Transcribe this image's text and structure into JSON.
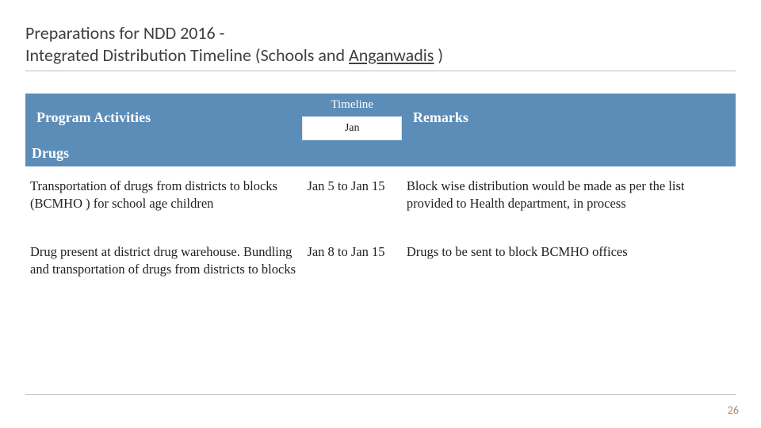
{
  "title_line1": "Preparations for NDD 2016 -",
  "title_line2_a": "Integrated Distribution Timeline (Schools and ",
  "title_line2_b": "Anganwadis",
  "title_line2_c": " )",
  "header": {
    "activities": "Program Activities",
    "timeline": "Timeline",
    "jan": "Jan",
    "remarks": "Remarks"
  },
  "section_drugs": "Drugs",
  "rows": [
    {
      "activity": "Transportation of drugs from districts to blocks (BCMHO ) for school age children",
      "timeline": "Jan 5 to Jan 15",
      "remarks": "Block wise distribution would be made as per the list provided to Health department, in process"
    },
    {
      "activity": "Drug present at district drug warehouse. Bundling and transportation of drugs from districts to blocks",
      "timeline": "Jan 8 to Jan 15",
      "remarks": "Drugs to be sent to block BCMHO offices"
    }
  ],
  "page_number": "26",
  "colors": {
    "header_bg": "#5b8db8",
    "header_fg": "#ffffff",
    "rule": "#bfbfbf",
    "pagenum": "#b08a5c"
  }
}
